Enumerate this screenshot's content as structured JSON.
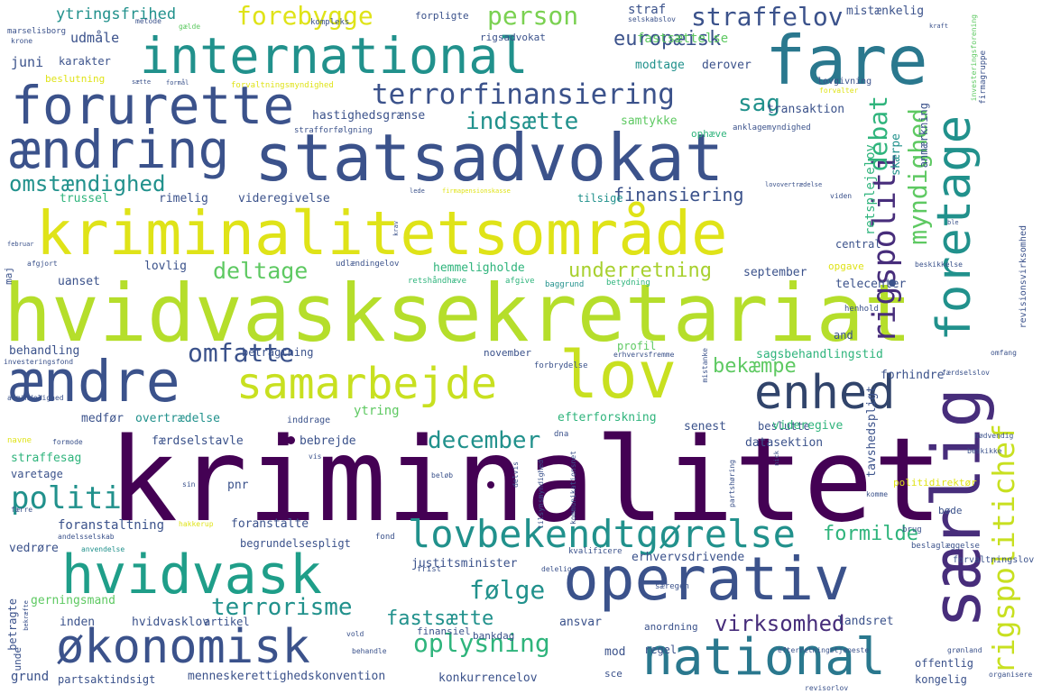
{
  "palette": {
    "dark_purple": "#440154",
    "indigo": "#3b528b",
    "teal": "#21918c",
    "green": "#5ec962",
    "yellow": "#d6e000",
    "lime": "#a8d02f",
    "sea_green": "#2fb47c"
  },
  "words": {
    "kriminalitet": "kriminalitet",
    "hvidvasksekretariat": "hvidvasksekretariat",
    "kriminalitetsomraade": "kriminalitetsområde",
    "statsadvokat": "statsadvokat",
    "international": "international",
    "fare": "fare",
    "forurette": "forurette",
    "aendring": "ændring",
    "foretage": "foretage",
    "aendre": "ændre",
    "samarbejde": "samarbejde",
    "lov": "lov",
    "enhed": "enhed",
    "saerlig": "særlig",
    "operativ": "operativ",
    "hvidvask": "hvidvask",
    "oekonomisk": "økonomisk",
    "national": "national",
    "lovbekendtgoerelse": "lovbekendtgørelse",
    "terrorfinansiering": "terrorfinansiering",
    "rigspoliti": "rigspoliti",
    "rigspolitichef": "rigspolitichef",
    "forebygge": "forebygge",
    "person": "person",
    "straffelov": "straffelov",
    "europaeisk": "europæisk",
    "indsaette": "indsætte",
    "sag": "sag",
    "myndighed": "myndighed",
    "debat": "debat",
    "omstaendighed": "omstændighed",
    "politi": "politi",
    "deltage": "deltage",
    "omfatte": "omfatte",
    "underretning": "underretning",
    "finansiering": "finansiering",
    "bekaempe": "bekæmpe",
    "december": "december",
    "virksomhed": "virksomhed",
    "oplysning": "oplysning",
    "terrorisme": "terrorisme",
    "fastsaette": "fastsætte",
    "foelge": "følge",
    "formilde": "formilde",
    "ytringsfrihed": "ytringsfrihed",
    "udmaale": "udmåle",
    "juni": "juni",
    "karakter": "karakter",
    "beslutning": "beslutning",
    "straf": "straf",
    "mistaenkelig": "mistænkelig",
    "fastsaettelse": "fastsættelse",
    "modtage": "modtage",
    "derover": "derover",
    "hastighedsgraense": "hastighedsgrænse",
    "transaktion": "transaktion",
    "samtykke": "samtykke",
    "ophaeve": "ophæve",
    "retsplejelov": "retsplejelov",
    "skaerpe": "skærpe",
    "trussel": "trussel",
    "rimelig": "rimelig",
    "videregivelse": "videregivelse",
    "tilsige": "tilsige",
    "lovlig": "lovlig",
    "uanset": "uanset",
    "hemmeligholde": "hemmeligholde",
    "september": "september",
    "telecenter": "telecenter",
    "central": "central",
    "opgave": "opgave",
    "behandling": "behandling",
    "betragtning": "betragtning",
    "profil": "profil",
    "sagsbehandlingstid": "sagsbehandlingstid",
    "and": "and",
    "forhindre": "forhindre",
    "november": "november",
    "medfoer": "medfør",
    "overtraedelse": "overtrædelse",
    "ytring": "ytring",
    "efterforskning": "efterforskning",
    "senest": "senest",
    "beslutte": "beslutte",
    "tavshedspligt": "tavshedspligt",
    "faerdselstavle": "færdselstavle",
    "bebrejde": "bebrejde",
    "datasektion": "datasektion",
    "videregive": "videregive",
    "straffesag": "straffesag",
    "varetage": "varetage",
    "pnr": "pnr",
    "foranstaltning": "foranstaltning",
    "foranstalte": "foranstalte",
    "vedroere": "vedrøre",
    "begrundelsespligt": "begrundelsespligt",
    "justitsminister": "justitsminister",
    "erhvervsdrivende": "erhvervsdrivende",
    "gerningsmand": "gerningsmand",
    "inden": "inden",
    "hvidvasklov": "hvidvasklov",
    "artikel": "artikel",
    "ansvar": "ansvar",
    "landsret": "landsret",
    "finansiel": "finansiel",
    "mod": "mod",
    "regel": "regel",
    "bankdag": "bankdag",
    "anordning": "anordning",
    "grund": "grund",
    "partsaktindsigt": "partsaktindsigt",
    "menneskerettighedskonvention": "menneskerettighedskonvention",
    "konkurrencelov": "konkurrencelov",
    "kongelig": "kongelig",
    "offentlig": "offentlig",
    "sce": "sce",
    "betragte": "betragte",
    "unde": "unde",
    "politidirektoer": "politidirektør",
    "boede": "bøde",
    "forvaltningslov": "forvaltningslov",
    "lovgivning": "lovgivning",
    "rigsadvokat": "rigsadvokat",
    "forpligte": "forpligte",
    "kompleks": "kompleks",
    "forvaltningsmyndighed": "forvaltningsmyndighed",
    "strafforfoelgning": "strafforfølgning",
    "anklagemyndighed": "anklagemyndighed",
    "firmagruppe": "firmagruppe",
    "anmaerkning": "anmærkning",
    "investeringsforening": "investeringsforening",
    "revisionsvirksomhed": "revisionsvirksomhed",
    "udlaendingelov": "udlændingelov",
    "retshaandhaeve": "retshåndhæve",
    "afgive": "afgive",
    "baggrund": "baggrund",
    "betydning": "betydning",
    "beskikkelse": "beskikkelse",
    "henhold": "henhold",
    "forbrydelse": "forbrydelse",
    "erhvervsfremme": "erhvervsfremme",
    "mistanke": "mistanke",
    "omfang": "omfang",
    "faerdselslov": "færdselslov",
    "investeringsfond": "investeringsfond",
    "almindelighed": "almindelighed",
    "inddrage": "inddrage",
    "navne": "navne",
    "formode": "formode",
    "dna": "dna",
    "noedvendig": "nødvendig",
    "beskikke": "beskikke",
    "kommunikationsnet": "kommunikationsnet",
    "tilsynsmyndighed": "tilsynsmyndighed",
    "delvis": "delvis",
    "partshoering": "partshøring",
    "vis": "vis",
    "belob": "beløb",
    "sin": "sin",
    "faerre": "færre",
    "andelsselskab": "andelsselskab",
    "anvendelse": "anvendelse",
    "hakkerup": "hakkerup",
    "brug": "brug",
    "beslaglaeggelse": "beslaglæggelse",
    "komme": "komme",
    "kvalificere": "kvalificere",
    "frist": "frist",
    "delelig": "delelig",
    "fond": "fond",
    "saeregen": "særegen",
    "vold": "vold",
    "behandle": "behandle",
    "efterretningstjeneste": "efterretningstjeneste",
    "groenland": "grønland",
    "organisere": "organisere",
    "revisorlov": "revisorlov",
    "bekraefte": "bekræfte",
    "marselisborg": "marselisborg",
    "krone": "krone",
    "metode": "metode",
    "gaelde": "gælde",
    "selskabslov": "selskabslov",
    "saette": "sætte",
    "formaal": "formål",
    "forvalter": "forvalter",
    "lede": "lede",
    "firmapensionskasse": "firmapensionskasse",
    "lovovertraedelse": "lovovertrædelse",
    "viden": "viden",
    "krav": "krav",
    "kraft": "kraft",
    "februar": "februar",
    "afgjort": "afgjort",
    "maj": "maj",
    "ble": "ble",
    "nick": "nick"
  }
}
